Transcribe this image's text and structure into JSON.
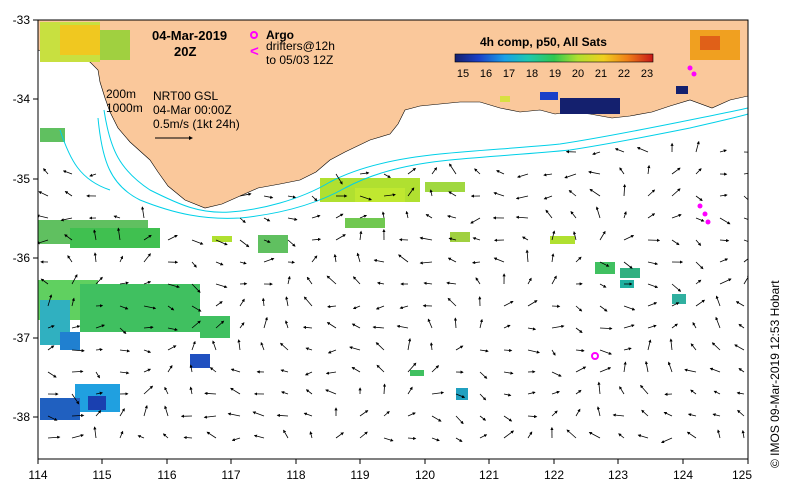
{
  "map": {
    "title_date": "04-Mar-2019",
    "title_time": "20Z",
    "argo_label": "Argo",
    "drifters_line1": "drifters@12h",
    "drifters_line2": "to 05/03 12Z",
    "drifter_symbol": "<",
    "isobath_200": "200m",
    "isobath_1000": "1000m",
    "product_line1": "NRT00 GSL",
    "product_line2": "04-Mar 00:00Z",
    "velocity_scale": "0.5m/s (1kt 24h)",
    "colorbar_title": "4h comp, p50, All Sats",
    "colorbar_ticks": [
      "15",
      "16",
      "17",
      "18",
      "19",
      "20",
      "21",
      "22",
      "23"
    ],
    "credit": "© IMOS 09-Mar-2019 12:53 Hobart",
    "x_ticks": [
      "114",
      "115",
      "116",
      "117",
      "118",
      "119",
      "120",
      "121",
      "122",
      "123",
      "124",
      "125"
    ],
    "y_ticks": [
      "-33",
      "-34",
      "-35",
      "-36",
      "-37",
      "-38"
    ],
    "colors": {
      "land": "#fac89b",
      "isobath": "#00d0e8",
      "argo": "#ff00ff",
      "ocean": "#ffffff"
    }
  }
}
